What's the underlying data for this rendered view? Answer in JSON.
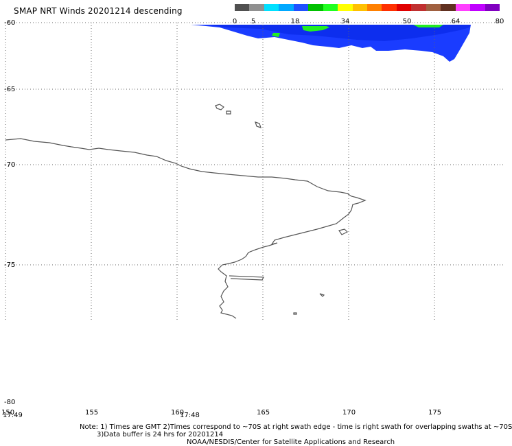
{
  "title": "SMAP NRT Winds  20201214 descending",
  "colorbar": {
    "ticks": [
      "0",
      "5",
      "18",
      "34",
      "50",
      "64",
      "80"
    ],
    "colors": [
      "#505050",
      "#909090",
      "#00e0ff",
      "#00a8ff",
      "#2050ff",
      "#00c000",
      "#20ff20",
      "#ffff00",
      "#ffc000",
      "#ff8000",
      "#ff3000",
      "#e00000",
      "#c03030",
      "#a06040",
      "#603020",
      "#ff40ff",
      "#c000ff",
      "#8000c0"
    ]
  },
  "map": {
    "lat_labels": [
      "-60",
      "-65",
      "-70",
      "-75",
      "-80"
    ],
    "lon_labels": [
      "150",
      "155",
      "160",
      "165",
      "170",
      "175"
    ],
    "time_labels": [
      "17:49",
      "17:48"
    ],
    "colors": {
      "coast": "#555555",
      "swath_blue": "#1a3cff",
      "swath_green": "#22ee22",
      "grid": "#666666"
    }
  },
  "notes": {
    "line1": "Note: 1) Times are GMT 2)Times correspond to ~70S at right swath edge - time is right swath for overlapping swaths at ~70S",
    "line2": "3)Data buffer is 24 hrs for 20201214",
    "line3": "NOAA/NESDIS/Center for Satellite Applications and Research"
  }
}
